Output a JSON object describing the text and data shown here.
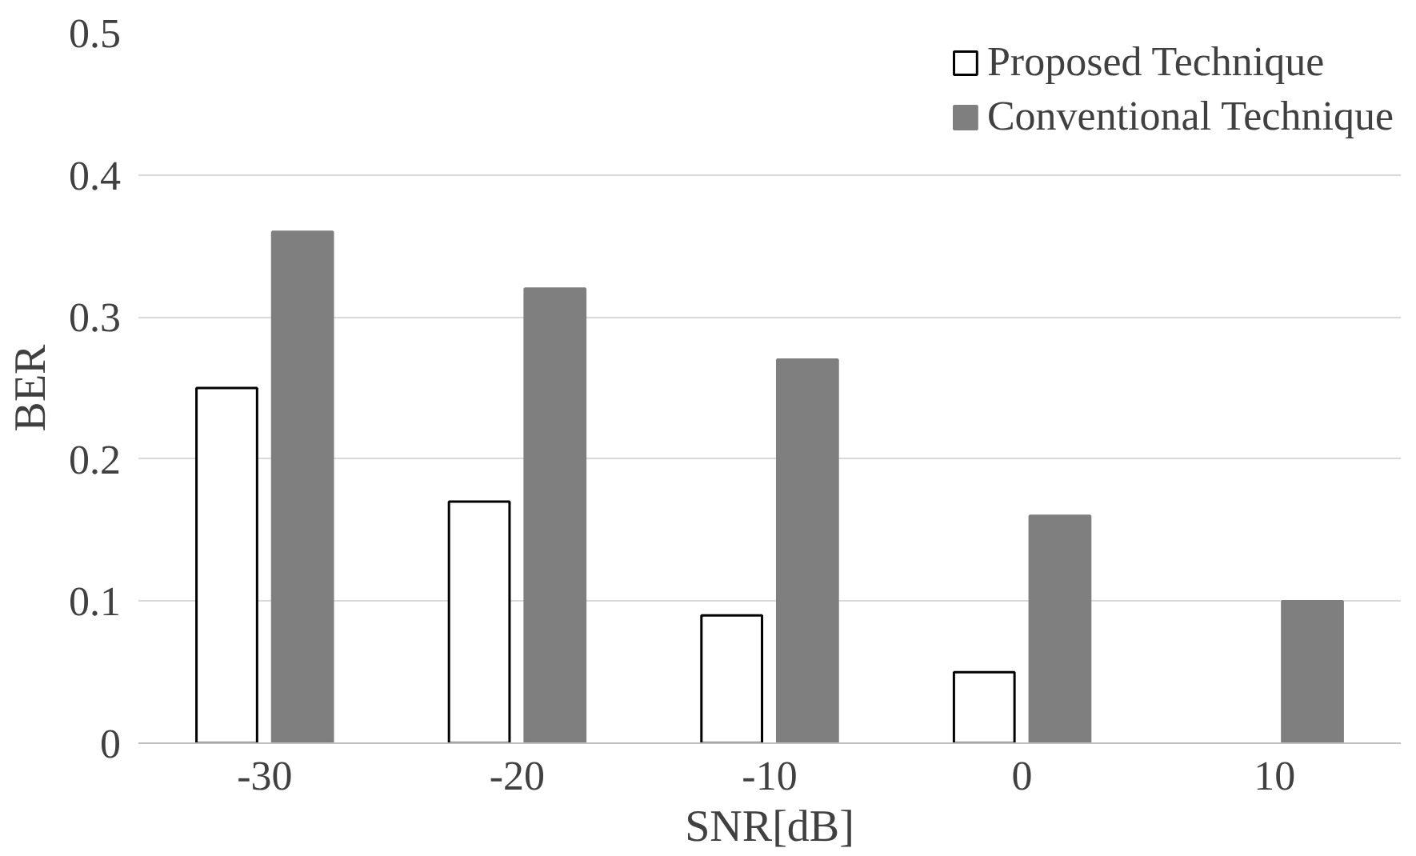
{
  "chart_data": {
    "type": "bar",
    "xlabel": "SNR[dB]",
    "ylabel": "BER",
    "categories": [
      "-30",
      "-20",
      "-10",
      "0",
      "10"
    ],
    "series": [
      {
        "name": "Proposed Technique",
        "color": "#ffffff",
        "values": [
          0.25,
          0.17,
          0.09,
          0.05,
          null
        ]
      },
      {
        "name": "Conventional Technique",
        "color": "#7f7f7f",
        "values": [
          0.36,
          0.32,
          0.27,
          0.16,
          0.1
        ]
      }
    ],
    "ylim": [
      0,
      0.5
    ],
    "yticks": [
      0,
      0.1,
      0.2,
      0.3,
      0.4,
      0.5
    ],
    "grid": "y",
    "legend": "top right"
  }
}
